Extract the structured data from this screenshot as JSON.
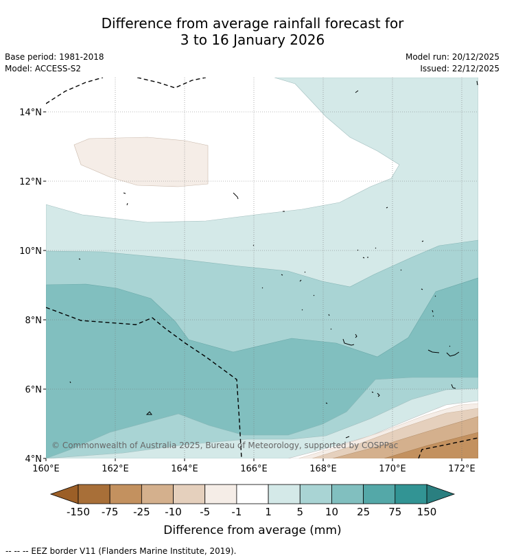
{
  "title": {
    "line1": "Difference from average rainfall forecast for",
    "line2": "3 to 16 January 2026"
  },
  "meta": {
    "base_period": "Base period: 1981-2018",
    "model": "Model: ACCESS-S2",
    "model_run": "Model run: 20/12/2025",
    "issued": "Issued: 22/12/2025"
  },
  "map": {
    "lat_labels": [
      "14°N",
      "12°N",
      "10°N",
      "8°N",
      "6°N",
      "4°N"
    ],
    "lon_labels": [
      "160°E",
      "162°E",
      "164°E",
      "166°E",
      "168°E",
      "170°E",
      "172°E"
    ],
    "copyright": "© Commonwealth of Australia 2025, Bureau of Meteorology, supported by COSPPac"
  },
  "colorbar": {
    "tick_labels": [
      "-150",
      "-75",
      "-25",
      "-10",
      "-5",
      "-1",
      "1",
      "5",
      "10",
      "25",
      "75",
      "150"
    ],
    "colors": [
      "#a86f38",
      "#c3915f",
      "#d4b08d",
      "#e5d0bd",
      "#f5ede7",
      "#ffffff",
      "#d4e9e8",
      "#a9d4d4",
      "#81bfbf",
      "#54a8a8",
      "#329494"
    ],
    "under_color": "#9c5f27",
    "over_color": "#2a7f80",
    "label": "Difference from average (mm)"
  },
  "legend": {
    "eez": "--  --  -- EEZ border V11 (Flanders Marine Institute, 2019)."
  }
}
